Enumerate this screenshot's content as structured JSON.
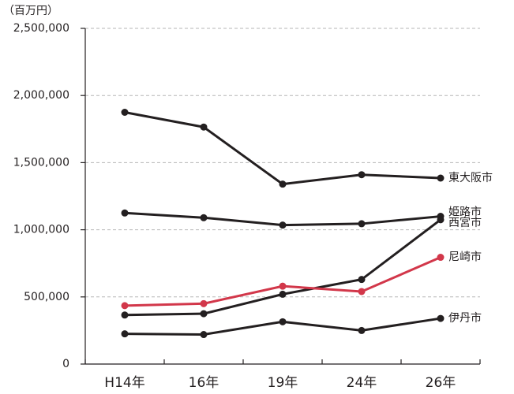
{
  "chart_data": {
    "type": "line",
    "unit": "（百万円）",
    "categories": [
      "H14年",
      "16年",
      "19年",
      "24年",
      "26年"
    ],
    "series": [
      {
        "name": "東大阪市",
        "color": "#231f20",
        "values": [
          1875000,
          1765000,
          1340000,
          1410000,
          1385000
        ]
      },
      {
        "name": "姫路市",
        "color": "#231f20",
        "values": [
          1125000,
          1090000,
          1035000,
          1045000,
          1100000
        ]
      },
      {
        "name": "西宮市",
        "color": "#231f20",
        "values": [
          365000,
          375000,
          520000,
          630000,
          1075000
        ]
      },
      {
        "name": "尼崎市",
        "color": "#d2374a",
        "values": [
          435000,
          450000,
          580000,
          540000,
          795000
        ]
      },
      {
        "name": "伊丹市",
        "color": "#231f20",
        "values": [
          225000,
          220000,
          315000,
          250000,
          340000
        ]
      }
    ],
    "ylim": [
      0,
      2500000
    ],
    "yticks": [
      0,
      {
        "value": 500000,
        "label": "500,000"
      },
      {
        "value": 1000000,
        "label": "1,000,000"
      },
      {
        "value": 1500000,
        "label": "1,500,000"
      },
      {
        "value": 2000000,
        "label": "2,000,000"
      },
      {
        "value": 2500000,
        "label": "2,500,000"
      }
    ],
    "grid": true
  }
}
